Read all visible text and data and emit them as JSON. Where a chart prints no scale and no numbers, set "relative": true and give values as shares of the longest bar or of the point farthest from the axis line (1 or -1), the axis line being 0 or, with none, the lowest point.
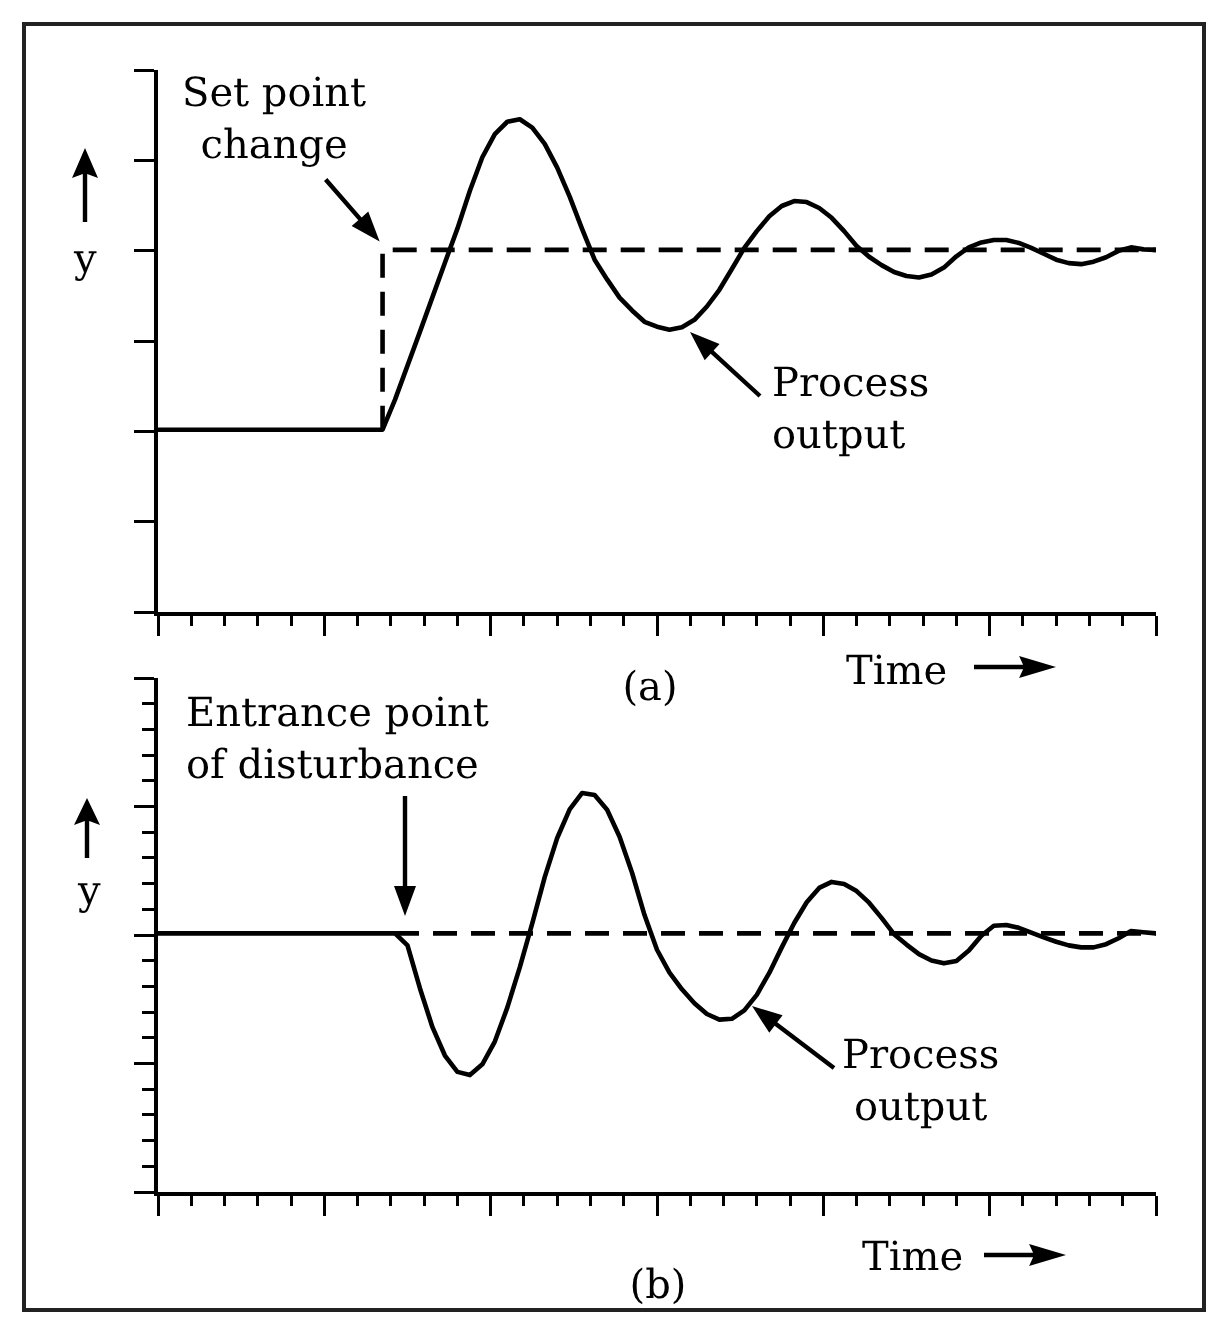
{
  "chart_data": [
    {
      "type": "line",
      "title": "(a)",
      "xlabel": "Time",
      "ylabel": "y",
      "relative": true,
      "tick_labels": false,
      "categories": [
        null,
        null,
        null,
        null,
        null,
        null,
        null,
        null,
        null,
        null,
        null,
        null,
        null,
        null,
        null,
        null,
        null,
        null,
        null,
        null,
        null,
        null,
        null,
        null,
        null,
        null,
        null,
        null,
        null,
        null,
        null,
        null,
        null,
        null,
        null,
        null,
        null,
        null,
        null,
        null,
        null,
        null,
        null,
        null,
        null,
        null,
        null,
        null,
        null,
        null,
        null,
        null,
        null,
        null,
        null,
        null,
        null,
        null,
        null,
        null,
        null,
        null,
        null,
        null,
        null,
        null,
        null,
        null,
        null,
        null,
        null,
        null,
        null,
        null,
        null,
        null,
        null,
        null,
        null,
        null,
        null
      ],
      "series": [
        {
          "color": "#000000",
          "line_style": "solid",
          "values": [
            0.37,
            0.37,
            0.37,
            0.37,
            0.37,
            0.37,
            0.37,
            0.37,
            0.37,
            0.37,
            0.37,
            0.37,
            0.37,
            0.37,
            0.37,
            0.37,
            0.37,
            0.37,
            0.37,
            0.431,
            0.5,
            0.569,
            0.639,
            0.709,
            0.778,
            0.855,
            0.923,
            0.97,
            0.995,
            1,
            0.983,
            0.95,
            0.902,
            0.843,
            0.777,
            0.715,
            0.675,
            0.638,
            0.612,
            0.589,
            0.579,
            0.573,
            0.578,
            0.593,
            0.62,
            0.654,
            0.696,
            0.739,
            0.773,
            0.803,
            0.824,
            0.834,
            0.832,
            0.82,
            0.8,
            0.773,
            0.743,
            0.721,
            0.704,
            0.69,
            0.682,
            0.679,
            0.685,
            0.699,
            0.722,
            0.74,
            0.75,
            0.755,
            0.755,
            0.749,
            0.739,
            0.727,
            0.715,
            0.708,
            0.706,
            0.711,
            0.72,
            0.733,
            0.74,
            0.736,
            0.735
          ]
        },
        {
          "type": "step",
          "color": "#000000",
          "line_style": "dashed",
          "values": [
            null,
            null,
            null,
            null,
            null,
            null,
            null,
            null,
            null,
            null,
            null,
            null,
            null,
            null,
            null,
            null,
            null,
            null,
            0.37,
            0.735,
            0.735,
            0.735,
            0.735,
            0.735,
            0.735,
            0.735,
            0.735,
            0.735,
            0.735,
            0.735,
            0.735,
            0.735,
            0.735,
            0.735,
            0.735,
            0.735,
            0.735,
            0.735,
            0.735,
            0.735,
            0.735,
            0.735,
            0.735,
            0.735,
            0.735,
            0.735,
            0.735,
            0.735,
            0.735,
            0.735,
            0.735,
            0.735,
            0.735,
            0.735,
            0.735,
            0.735,
            0.735,
            0.735,
            0.735,
            0.735,
            0.735,
            0.735,
            0.735,
            0.735,
            0.735,
            0.735,
            0.735,
            0.735,
            0.735,
            0.735,
            0.735,
            0.735,
            0.735,
            0.735,
            0.735,
            0.735,
            0.735,
            0.735,
            0.735,
            0.735,
            0.735
          ]
        }
      ],
      "annotations": [
        "Set point change",
        "Process output"
      ]
    },
    {
      "type": "line",
      "title": "(b)",
      "xlabel": "Time",
      "ylabel": "y",
      "relative": true,
      "tick_labels": false,
      "categories": [
        null,
        null,
        null,
        null,
        null,
        null,
        null,
        null,
        null,
        null,
        null,
        null,
        null,
        null,
        null,
        null,
        null,
        null,
        null,
        null,
        null,
        null,
        null,
        null,
        null,
        null,
        null,
        null,
        null,
        null,
        null,
        null,
        null,
        null,
        null,
        null,
        null,
        null,
        null,
        null,
        null,
        null,
        null,
        null,
        null,
        null,
        null,
        null,
        null,
        null,
        null,
        null,
        null,
        null,
        null,
        null,
        null,
        null,
        null,
        null,
        null,
        null,
        null,
        null,
        null,
        null,
        null,
        null,
        null,
        null,
        null,
        null,
        null,
        null,
        null,
        null,
        null,
        null,
        null,
        null,
        null
      ],
      "series": [
        {
          "color": "#000000",
          "line_style": "solid",
          "values": [
            0.648,
            0.648,
            0.648,
            0.648,
            0.648,
            0.648,
            0.648,
            0.648,
            0.648,
            0.648,
            0.648,
            0.648,
            0.648,
            0.648,
            0.648,
            0.648,
            0.648,
            0.648,
            0.648,
            0.648,
            0.618,
            0.51,
            0.413,
            0.342,
            0.301,
            0.293,
            0.32,
            0.377,
            0.462,
            0.563,
            0.673,
            0.789,
            0.887,
            0.959,
            1,
            0.995,
            0.958,
            0.89,
            0.8,
            0.694,
            0.607,
            0.55,
            0.508,
            0.473,
            0.446,
            0.432,
            0.434,
            0.455,
            0.494,
            0.549,
            0.613,
            0.674,
            0.726,
            0.762,
            0.777,
            0.772,
            0.754,
            0.725,
            0.687,
            0.646,
            0.62,
            0.596,
            0.58,
            0.573,
            0.579,
            0.605,
            0.642,
            0.667,
            0.669,
            0.662,
            0.65,
            0.638,
            0.627,
            0.618,
            0.613,
            0.613,
            0.621,
            0.636,
            0.654,
            0.651,
            0.648
          ]
        },
        {
          "color": "#000000",
          "line_style": "dashed",
          "values": [
            null,
            null,
            null,
            null,
            null,
            null,
            null,
            null,
            null,
            null,
            null,
            null,
            null,
            null,
            null,
            null,
            null,
            null,
            null,
            0.648,
            0.648,
            0.648,
            0.648,
            0.648,
            0.648,
            0.648,
            0.648,
            0.648,
            0.648,
            0.648,
            0.648,
            0.648,
            0.648,
            0.648,
            0.648,
            0.648,
            0.648,
            0.648,
            0.648,
            0.648,
            0.648,
            0.648,
            0.648,
            0.648,
            0.648,
            0.648,
            0.648,
            0.648,
            0.648,
            0.648,
            0.648,
            0.648,
            0.648,
            0.648,
            0.648,
            0.648,
            0.648,
            0.648,
            0.648,
            0.648,
            0.648,
            0.648,
            0.648,
            0.648,
            0.648,
            0.648,
            0.648,
            0.648,
            0.648,
            0.648,
            0.648,
            0.648,
            0.648,
            0.648,
            0.648,
            0.648,
            0.648,
            0.648,
            0.648,
            0.648,
            0.648
          ]
        }
      ],
      "annotations": [
        "Entrance point of disturbance",
        "Process output"
      ]
    }
  ]
}
